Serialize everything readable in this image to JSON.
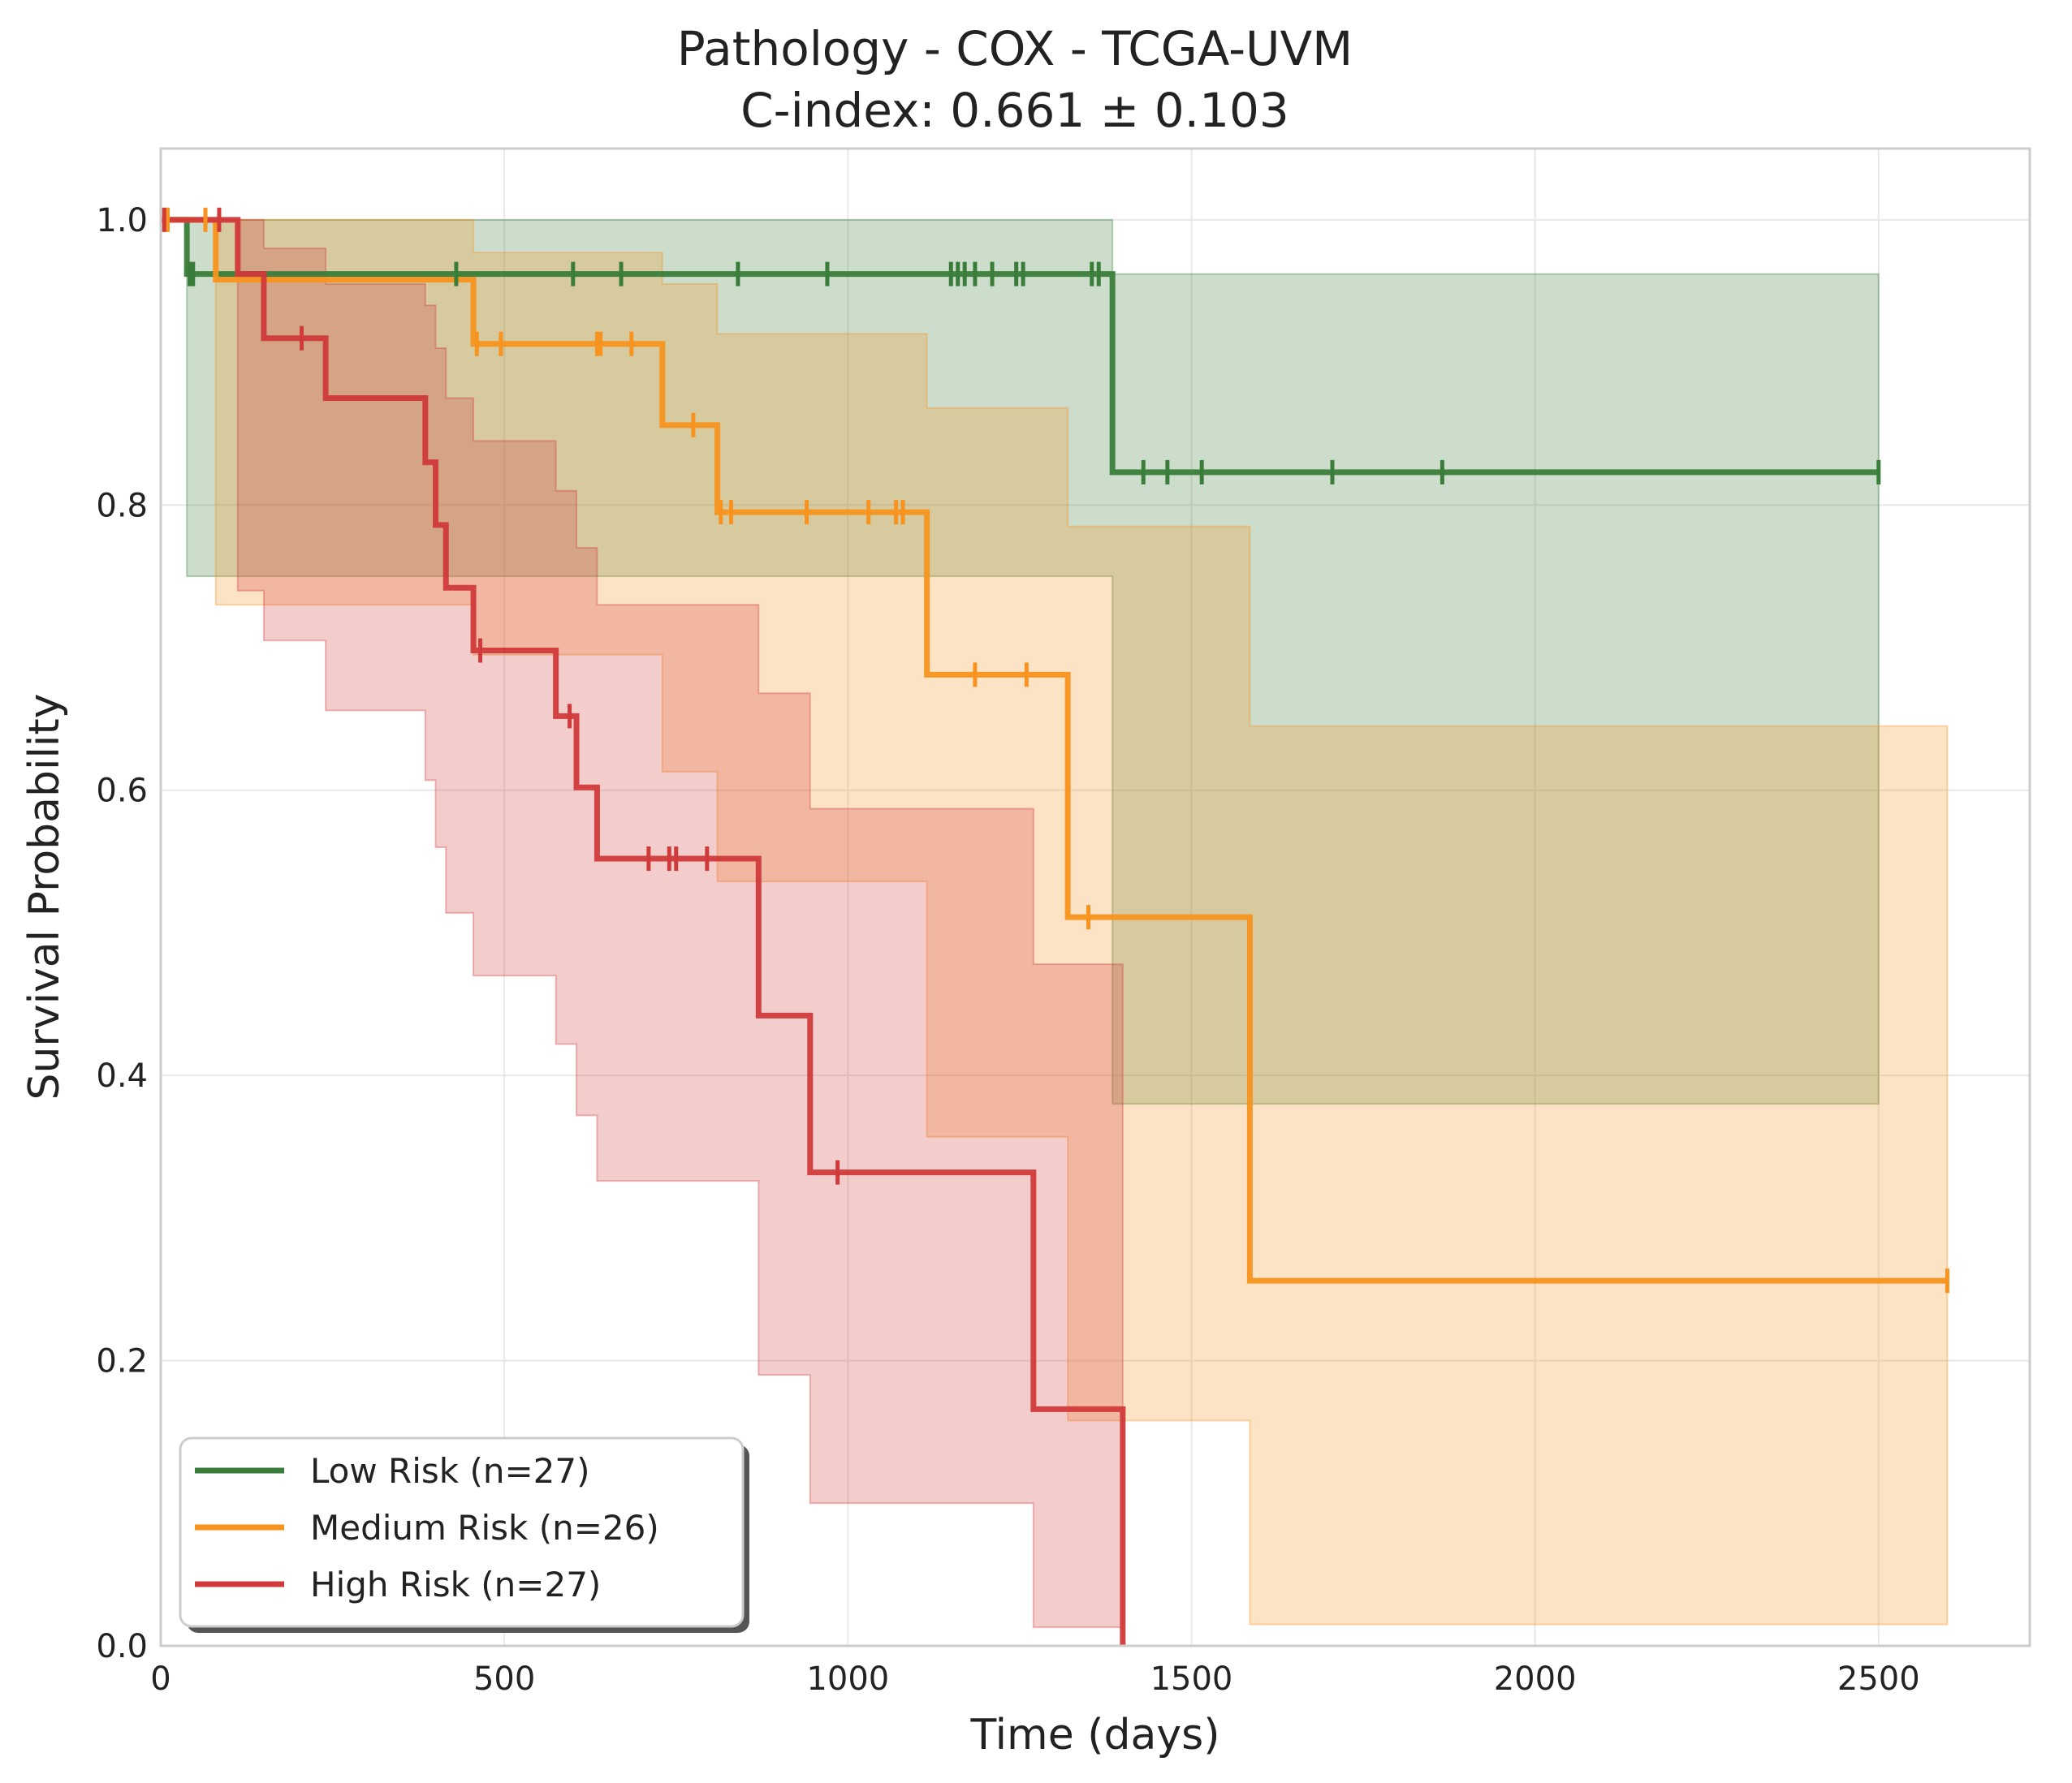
{
  "chart_data": {
    "type": "line",
    "subtype": "kaplan-meier",
    "title": "Pathology - COX - TCGA-UVM",
    "subtitle": "C-index: 0.661 ± 0.103",
    "xlabel": "Time (days)",
    "ylabel": "Survival Probability",
    "xlim": [
      0,
      2720
    ],
    "ylim": [
      0,
      1.05
    ],
    "xticks": [
      0,
      500,
      1000,
      1500,
      2000,
      2500
    ],
    "xtick_labels": [
      "0",
      "500",
      "1000",
      "1500",
      "2000",
      "2500"
    ],
    "yticks": [
      0,
      0.2,
      0.4,
      0.6,
      0.8,
      1.0
    ],
    "ytick_labels": [
      "0.0",
      "0.2",
      "0.4",
      "0.6",
      "0.8",
      "1.0"
    ],
    "grid": true,
    "legend_position": "lower-left",
    "series": [
      {
        "name": "Low Risk (n=27)",
        "color": "#3a7d3a",
        "steps": [
          [
            0,
            1.0
          ],
          [
            38,
            0.962
          ],
          [
            1385,
            0.823
          ],
          [
            2500,
            0.823
          ]
        ],
        "ci": [
          [
            0,
            1.0,
            1.0
          ],
          [
            38,
            0.75,
            1.0
          ],
          [
            1385,
            0.38,
            0.962
          ],
          [
            2500,
            0.38,
            0.962
          ]
        ],
        "censor": [
          [
            42,
            0.962
          ],
          [
            47,
            0.962
          ],
          [
            430,
            0.962
          ],
          [
            600,
            0.962
          ],
          [
            670,
            0.962
          ],
          [
            840,
            0.962
          ],
          [
            970,
            0.962
          ],
          [
            1150,
            0.962
          ],
          [
            1160,
            0.962
          ],
          [
            1170,
            0.962
          ],
          [
            1185,
            0.962
          ],
          [
            1210,
            0.962
          ],
          [
            1245,
            0.962
          ],
          [
            1255,
            0.962
          ],
          [
            1355,
            0.962
          ],
          [
            1365,
            0.962
          ],
          [
            1430,
            0.823
          ],
          [
            1465,
            0.823
          ],
          [
            1515,
            0.823
          ],
          [
            1705,
            0.823
          ],
          [
            1865,
            0.823
          ],
          [
            2500,
            0.823
          ]
        ]
      },
      {
        "name": "Medium Risk (n=26)",
        "color": "#f7931e",
        "steps": [
          [
            0,
            1.0
          ],
          [
            80,
            0.958
          ],
          [
            455,
            0.913
          ],
          [
            730,
            0.856
          ],
          [
            810,
            0.795
          ],
          [
            1115,
            0.681
          ],
          [
            1320,
            0.511
          ],
          [
            1585,
            0.256
          ],
          [
            2600,
            0.256
          ]
        ],
        "ci": [
          [
            0,
            1.0,
            1.0
          ],
          [
            80,
            0.73,
            1.0
          ],
          [
            455,
            0.695,
            0.977
          ],
          [
            730,
            0.613,
            0.955
          ],
          [
            810,
            0.536,
            0.92
          ],
          [
            1115,
            0.357,
            0.868
          ],
          [
            1320,
            0.158,
            0.785
          ],
          [
            1585,
            0.015,
            0.645
          ],
          [
            2600,
            0.015,
            0.645
          ]
        ],
        "ci_extra": [
          [
            1385,
            0.158,
            0.785
          ]
        ],
        "censor": [
          [
            10,
            1.0
          ],
          [
            65,
            1.0
          ],
          [
            460,
            0.913
          ],
          [
            495,
            0.913
          ],
          [
            635,
            0.913
          ],
          [
            640,
            0.913
          ],
          [
            685,
            0.913
          ],
          [
            775,
            0.856
          ],
          [
            815,
            0.795
          ],
          [
            830,
            0.795
          ],
          [
            940,
            0.795
          ],
          [
            1030,
            0.795
          ],
          [
            1070,
            0.795
          ],
          [
            1080,
            0.795
          ],
          [
            1185,
            0.681
          ],
          [
            1260,
            0.681
          ],
          [
            1350,
            0.511
          ],
          [
            2600,
            0.256
          ]
        ]
      },
      {
        "name": "High Risk (n=27)",
        "color": "#d03a3a",
        "steps": [
          [
            0,
            1.0
          ],
          [
            112,
            0.962
          ],
          [
            150,
            0.917
          ],
          [
            240,
            0.875
          ],
          [
            385,
            0.83
          ],
          [
            400,
            0.786
          ],
          [
            415,
            0.742
          ],
          [
            455,
            0.698
          ],
          [
            575,
            0.652
          ],
          [
            605,
            0.602
          ],
          [
            635,
            0.552
          ],
          [
            870,
            0.442
          ],
          [
            945,
            0.332
          ],
          [
            1270,
            0.166
          ],
          [
            1400,
            0.0
          ]
        ],
        "ci": [
          [
            0,
            1.0,
            1.0
          ],
          [
            112,
            0.74,
            1.0
          ],
          [
            150,
            0.705,
            0.98
          ],
          [
            240,
            0.656,
            0.955
          ],
          [
            385,
            0.607,
            0.94
          ],
          [
            400,
            0.56,
            0.91
          ],
          [
            415,
            0.514,
            0.875
          ],
          [
            455,
            0.47,
            0.845
          ],
          [
            575,
            0.422,
            0.81
          ],
          [
            605,
            0.372,
            0.77
          ],
          [
            635,
            0.326,
            0.73
          ],
          [
            870,
            0.19,
            0.668
          ],
          [
            945,
            0.1,
            0.587
          ],
          [
            1270,
            0.013,
            0.478
          ],
          [
            1400,
            0.013,
            0.478
          ]
        ],
        "censor": [
          [
            5,
            1.0
          ],
          [
            85,
            1.0
          ],
          [
            205,
            0.917
          ],
          [
            465,
            0.698
          ],
          [
            595,
            0.652
          ],
          [
            710,
            0.552
          ],
          [
            740,
            0.552
          ],
          [
            750,
            0.552
          ],
          [
            795,
            0.552
          ],
          [
            985,
            0.332
          ]
        ]
      }
    ]
  }
}
